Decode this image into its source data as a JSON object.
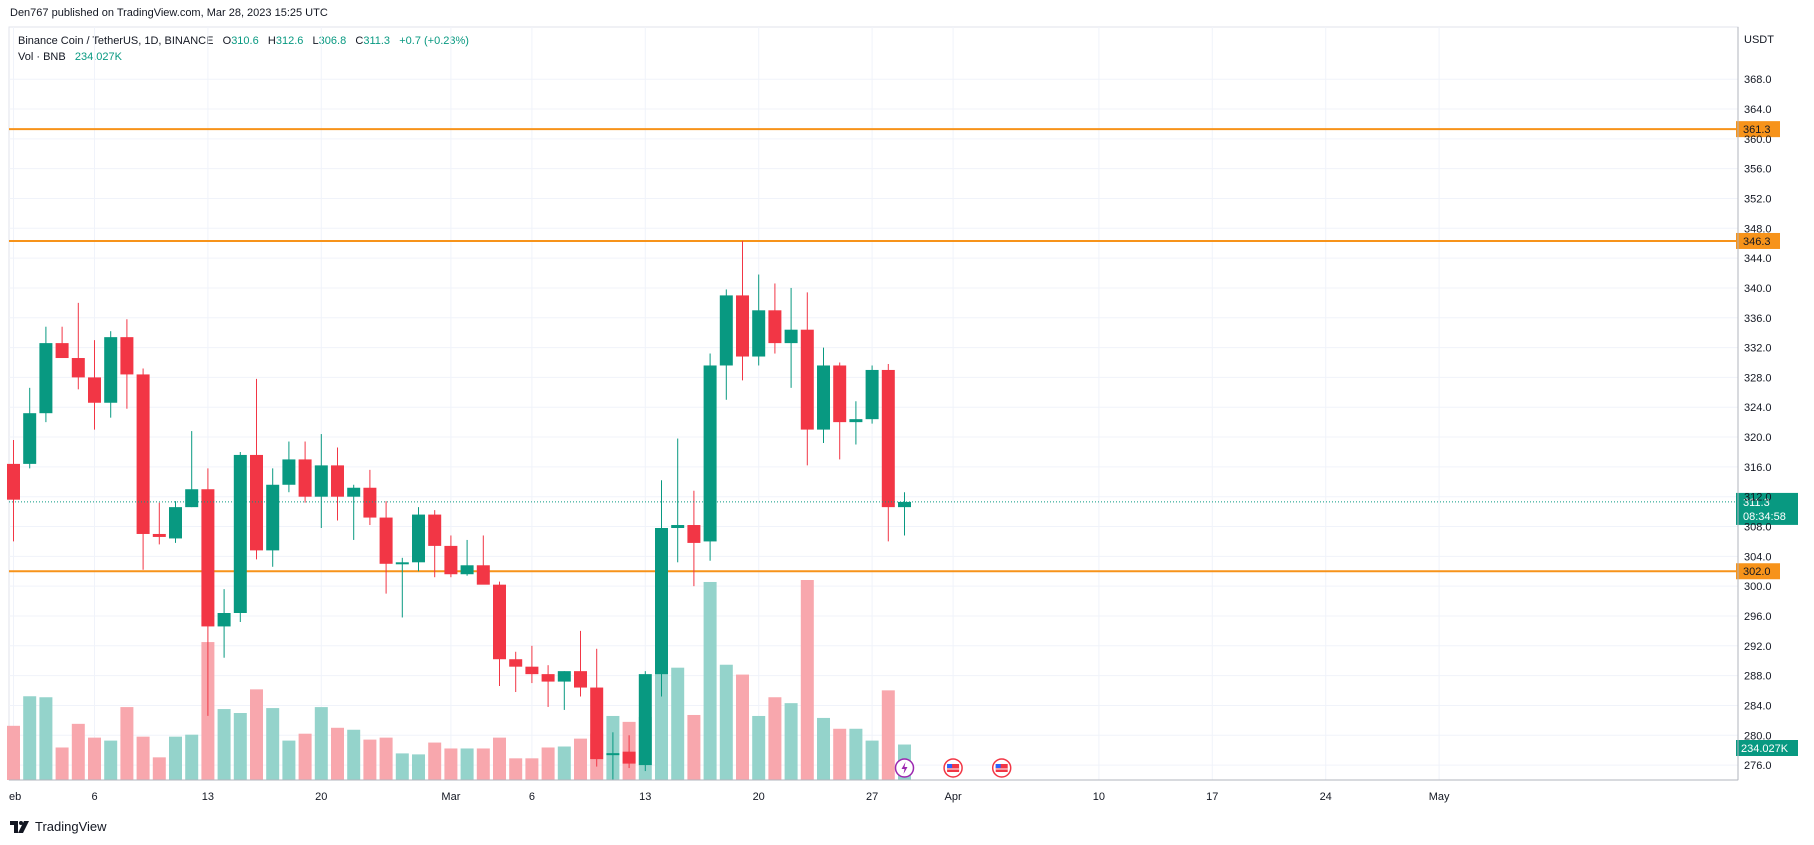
{
  "header": {
    "published": "Den767 published on TradingView.com, Mar 28, 2023 15:25 UTC",
    "symbol": "Binance Coin / TetherUS, 1D, BINANCE",
    "o_label": "O",
    "o_value": "310.6",
    "h_label": "H",
    "h_value": "312.6",
    "l_label": "L",
    "l_value": "306.8",
    "c_label": "C",
    "c_value": "311.3",
    "change": "+0.7 (+0.23%)",
    "vol_label": "Vol · BNB",
    "vol_value": "234.027K"
  },
  "brand": "TradingView",
  "colors": {
    "up": "#089981",
    "down": "#f23645",
    "vol_up": "#94d3cb",
    "vol_down": "#f8a7ad",
    "level": "#f7931a",
    "grid": "#f0f3fa"
  },
  "chart_data": {
    "type": "candlestick",
    "currency": "USDT",
    "ylim": [
      274.0,
      375.0
    ],
    "y_ticks": [
      "276.0",
      "280.0",
      "284.0",
      "288.0",
      "292.0",
      "296.0",
      "300.0",
      "304.0",
      "308.0",
      "312.0",
      "316.0",
      "320.0",
      "324.0",
      "328.0",
      "332.0",
      "336.0",
      "340.0",
      "344.0",
      "348.0",
      "352.0",
      "356.0",
      "360.0",
      "364.0",
      "368.0"
    ],
    "x_ticks": [
      {
        "label": "eb",
        "index": 0
      },
      {
        "label": "6",
        "index": 5
      },
      {
        "label": "13",
        "index": 12
      },
      {
        "label": "20",
        "index": 19
      },
      {
        "label": "Mar",
        "index": 27
      },
      {
        "label": "6",
        "index": 32
      },
      {
        "label": "13",
        "index": 39
      },
      {
        "label": "20",
        "index": 46
      },
      {
        "label": "27",
        "index": 53
      },
      {
        "label": "Apr",
        "index": 58
      },
      {
        "label": "10",
        "index": 67
      },
      {
        "label": "17",
        "index": 74
      },
      {
        "label": "24",
        "index": 81
      },
      {
        "label": "May",
        "index": 88
      }
    ],
    "candles": [
      {
        "date": "Feb 1",
        "o": 316.4,
        "h": 319.6,
        "l": 306.0,
        "c": 311.6,
        "v": 55
      },
      {
        "date": "Feb 2",
        "o": 316.4,
        "h": 326.6,
        "l": 315.8,
        "c": 323.2,
        "v": 85
      },
      {
        "date": "Feb 3",
        "o": 323.2,
        "h": 334.8,
        "l": 322.0,
        "c": 332.6,
        "v": 84
      },
      {
        "date": "Feb 4",
        "o": 332.6,
        "h": 334.8,
        "l": 330.6,
        "c": 330.6,
        "v": 33
      },
      {
        "date": "Feb 5",
        "o": 330.6,
        "h": 338.0,
        "l": 326.4,
        "c": 328.0,
        "v": 57
      },
      {
        "date": "Feb 6",
        "o": 328.0,
        "h": 333.0,
        "l": 321.0,
        "c": 324.6,
        "v": 43
      },
      {
        "date": "Feb 7",
        "o": 324.6,
        "h": 334.2,
        "l": 322.6,
        "c": 333.4,
        "v": 40
      },
      {
        "date": "Feb 8",
        "o": 333.4,
        "h": 335.8,
        "l": 323.8,
        "c": 328.4,
        "v": 74
      },
      {
        "date": "Feb 9",
        "o": 328.4,
        "h": 329.2,
        "l": 302.2,
        "c": 307.0,
        "v": 44
      },
      {
        "date": "Feb 10",
        "o": 307.0,
        "h": 311.2,
        "l": 305.6,
        "c": 306.6,
        "v": 23
      },
      {
        "date": "Feb 11",
        "o": 306.4,
        "h": 311.4,
        "l": 305.8,
        "c": 310.6,
        "v": 44
      },
      {
        "date": "Feb 12",
        "o": 310.6,
        "h": 320.8,
        "l": 310.6,
        "c": 313.0,
        "v": 46
      },
      {
        "date": "Feb 13",
        "o": 313.0,
        "h": 315.8,
        "l": 282.6,
        "c": 294.6,
        "v": 140
      },
      {
        "date": "Feb 14",
        "o": 294.6,
        "h": 299.6,
        "l": 290.4,
        "c": 296.4,
        "v": 72
      },
      {
        "date": "Feb 15",
        "o": 296.4,
        "h": 318.0,
        "l": 295.2,
        "c": 317.6,
        "v": 68
      },
      {
        "date": "Feb 16",
        "o": 317.6,
        "h": 327.8,
        "l": 303.6,
        "c": 304.8,
        "v": 92
      },
      {
        "date": "Feb 17",
        "o": 304.8,
        "h": 315.8,
        "l": 302.6,
        "c": 313.6,
        "v": 73
      },
      {
        "date": "Feb 18",
        "o": 313.6,
        "h": 319.4,
        "l": 312.6,
        "c": 317.0,
        "v": 40
      },
      {
        "date": "Feb 19",
        "o": 317.0,
        "h": 319.4,
        "l": 311.2,
        "c": 312.0,
        "v": 47
      },
      {
        "date": "Feb 20",
        "o": 312.0,
        "h": 320.4,
        "l": 307.8,
        "c": 316.2,
        "v": 74
      },
      {
        "date": "Feb 21",
        "o": 316.2,
        "h": 318.6,
        "l": 308.8,
        "c": 312.0,
        "v": 53
      },
      {
        "date": "Feb 22",
        "o": 312.0,
        "h": 313.6,
        "l": 306.2,
        "c": 313.2,
        "v": 51
      },
      {
        "date": "Feb 23",
        "o": 313.2,
        "h": 315.6,
        "l": 308.2,
        "c": 309.2,
        "v": 41
      },
      {
        "date": "Feb 24",
        "o": 309.2,
        "h": 311.4,
        "l": 299.0,
        "c": 303.0,
        "v": 43
      },
      {
        "date": "Feb 25",
        "o": 303.0,
        "h": 303.8,
        "l": 295.8,
        "c": 303.2,
        "v": 27
      },
      {
        "date": "Feb 26",
        "o": 303.2,
        "h": 310.6,
        "l": 302.0,
        "c": 309.6,
        "v": 26
      },
      {
        "date": "Feb 27",
        "o": 309.6,
        "h": 310.2,
        "l": 301.2,
        "c": 305.4,
        "v": 38
      },
      {
        "date": "Feb 28",
        "o": 305.4,
        "h": 306.8,
        "l": 301.2,
        "c": 301.6,
        "v": 32
      },
      {
        "date": "Mar 1",
        "o": 301.6,
        "h": 306.2,
        "l": 301.4,
        "c": 302.8,
        "v": 32
      },
      {
        "date": "Mar 2",
        "o": 302.8,
        "h": 306.8,
        "l": 300.4,
        "c": 300.2,
        "v": 32
      },
      {
        "date": "Mar 3",
        "o": 300.2,
        "h": 300.6,
        "l": 286.6,
        "c": 290.2,
        "v": 43
      },
      {
        "date": "Mar 4",
        "o": 290.2,
        "h": 291.2,
        "l": 285.8,
        "c": 289.2,
        "v": 22
      },
      {
        "date": "Mar 5",
        "o": 289.2,
        "h": 292.0,
        "l": 287.0,
        "c": 288.2,
        "v": 22
      },
      {
        "date": "Mar 6",
        "o": 288.2,
        "h": 289.4,
        "l": 283.8,
        "c": 287.2,
        "v": 33
      },
      {
        "date": "Mar 7",
        "o": 287.2,
        "h": 288.6,
        "l": 283.4,
        "c": 288.6,
        "v": 34
      },
      {
        "date": "Mar 8",
        "o": 288.6,
        "h": 294.0,
        "l": 285.2,
        "c": 286.4,
        "v": 42
      },
      {
        "date": "Mar 9",
        "o": 286.4,
        "h": 291.6,
        "l": 275.8,
        "c": 276.8,
        "v": 47
      },
      {
        "date": "Mar 10",
        "o": 277.6,
        "h": 280.4,
        "l": 274.0,
        "c": 277.6,
        "v": 65
      },
      {
        "date": "Mar 11",
        "o": 277.8,
        "h": 280.0,
        "l": 275.6,
        "c": 276.2,
        "v": 59
      },
      {
        "date": "Mar 12",
        "o": 276.0,
        "h": 288.6,
        "l": 275.2,
        "c": 288.2,
        "v": 64
      },
      {
        "date": "Mar 13",
        "o": 288.2,
        "h": 314.2,
        "l": 285.2,
        "c": 307.8,
        "v": 114
      },
      {
        "date": "Mar 14",
        "o": 307.8,
        "h": 319.8,
        "l": 303.2,
        "c": 308.2,
        "v": 114
      },
      {
        "date": "Mar 15",
        "o": 308.2,
        "h": 312.8,
        "l": 300.0,
        "c": 305.8,
        "v": 66
      },
      {
        "date": "Mar 16",
        "o": 306.0,
        "h": 331.2,
        "l": 303.4,
        "c": 329.6,
        "v": 201
      },
      {
        "date": "Mar 17",
        "o": 329.6,
        "h": 339.8,
        "l": 325.0,
        "c": 339.0,
        "v": 117
      },
      {
        "date": "Mar 18",
        "o": 339.0,
        "h": 346.3,
        "l": 327.6,
        "c": 330.8,
        "v": 107
      },
      {
        "date": "Mar 19",
        "o": 330.8,
        "h": 341.8,
        "l": 329.6,
        "c": 337.0,
        "v": 65
      },
      {
        "date": "Mar 20",
        "o": 337.0,
        "h": 340.6,
        "l": 331.2,
        "c": 332.6,
        "v": 84
      },
      {
        "date": "Mar 21",
        "o": 332.6,
        "h": 340.0,
        "l": 326.6,
        "c": 334.4,
        "v": 78
      },
      {
        "date": "Mar 22",
        "o": 334.4,
        "h": 339.4,
        "l": 316.2,
        "c": 321.0,
        "v": 203
      },
      {
        "date": "Mar 23",
        "o": 321.0,
        "h": 332.0,
        "l": 319.2,
        "c": 329.6,
        "v": 63
      },
      {
        "date": "Mar 24",
        "o": 329.6,
        "h": 330.0,
        "l": 317.0,
        "c": 322.0,
        "v": 52
      },
      {
        "date": "Mar 25",
        "o": 322.0,
        "h": 324.8,
        "l": 319.0,
        "c": 322.4,
        "v": 52
      },
      {
        "date": "Mar 26",
        "o": 322.4,
        "h": 329.6,
        "l": 321.8,
        "c": 329.0,
        "v": 40
      },
      {
        "date": "Mar 27",
        "o": 329.0,
        "h": 329.8,
        "l": 306.0,
        "c": 310.6,
        "v": 91
      },
      {
        "date": "Mar 28",
        "o": 310.6,
        "h": 312.6,
        "l": 306.8,
        "c": 311.3,
        "v": 36
      }
    ],
    "horizontal_levels": [
      {
        "value": 361.3,
        "label": "361.3"
      },
      {
        "value": 346.3,
        "label": "346.3"
      },
      {
        "value": 302.0,
        "label": "302.0"
      }
    ],
    "last_price": {
      "value": 311.3,
      "label": "311.3",
      "countdown": "08:34:58"
    },
    "volume_label": "234.027K",
    "events": [
      {
        "type": "lightning",
        "index": 55
      },
      {
        "type": "us-flag",
        "index": 58
      },
      {
        "type": "us-flag",
        "index": 61
      }
    ]
  }
}
